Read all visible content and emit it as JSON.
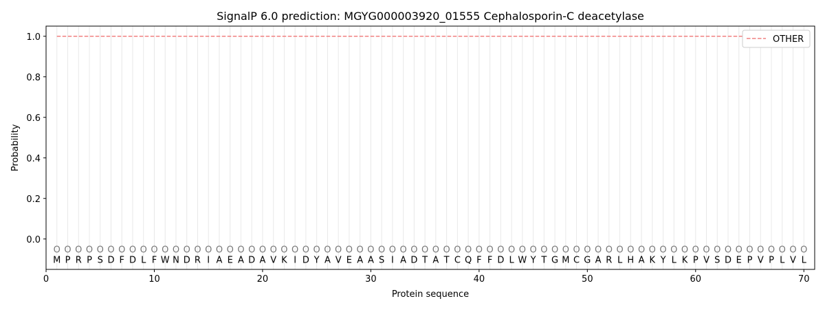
{
  "chart_data": {
    "type": "line",
    "title": "SignalP 6.0 prediction: MGYG000003920_01555 Cephalosporin-C deacetylase",
    "xlabel": "Protein sequence",
    "ylabel": "Probability",
    "xlim": [
      0,
      71
    ],
    "ylim": [
      -0.15,
      1.05
    ],
    "xticks": [
      0,
      10,
      20,
      30,
      40,
      50,
      60,
      70
    ],
    "yticks": [
      0.0,
      0.2,
      0.4,
      0.6,
      0.8,
      1.0
    ],
    "ytick_labels": [
      "0.0",
      "0.2",
      "0.4",
      "0.6",
      "0.8",
      "1.0"
    ],
    "legend_position": "top-right",
    "sequence": [
      "M",
      "P",
      "R",
      "P",
      "S",
      "D",
      "F",
      "D",
      "L",
      "F",
      "W",
      "N",
      "D",
      "R",
      "I",
      "A",
      "E",
      "A",
      "D",
      "A",
      "V",
      "K",
      "I",
      "D",
      "Y",
      "A",
      "V",
      "E",
      "A",
      "A",
      "S",
      "I",
      "A",
      "D",
      "T",
      "A",
      "T",
      "C",
      "Q",
      "F",
      "F",
      "D",
      "L",
      "W",
      "Y",
      "T",
      "G",
      "M",
      "C",
      "G",
      "A",
      "R",
      "L",
      "H",
      "A",
      "K",
      "Y",
      "L",
      "K",
      "P",
      "V",
      "S",
      "D",
      "E",
      "P",
      "V",
      "P",
      "L",
      "V",
      "L"
    ],
    "predicted_labels": "OOOOOOOOOOOOOOOOOOOOOOOOOOOOOOOOOOOOOOOOOOOOOOOOOOOOOOOOOOOOOOOOOOOOOO",
    "series": [
      {
        "name": "OTHER",
        "color": "#f08080",
        "style": "dashed",
        "x_range": [
          1,
          70
        ],
        "value": 1.0
      }
    ]
  }
}
